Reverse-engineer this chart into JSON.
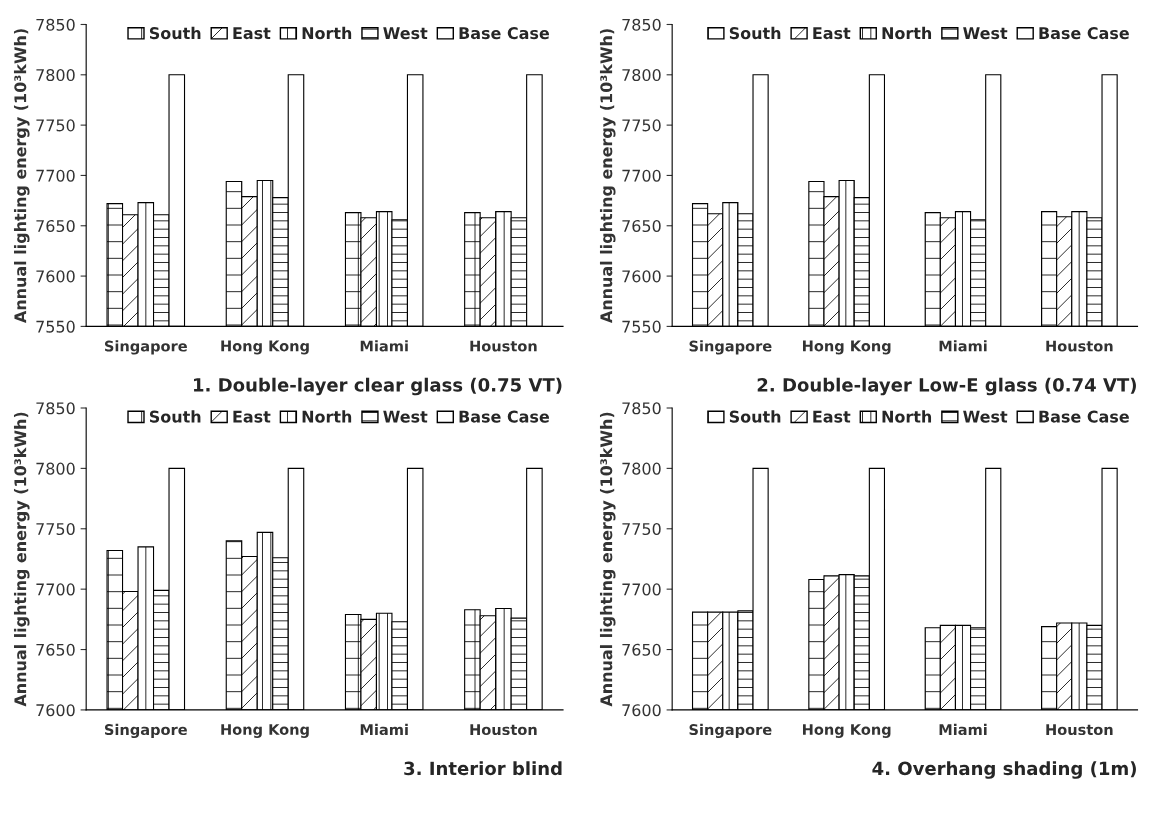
{
  "chart_data": [
    {
      "type": "bar",
      "title": "1. Double-layer clear glass (0.75 VT)",
      "ylabel": "Annual lighting energy (10³kWh)",
      "categories": [
        "Singapore",
        "Hong Kong",
        "Miami",
        "Houston"
      ],
      "ylim": [
        7550,
        7850
      ],
      "yticks": [
        7550,
        7600,
        7650,
        7700,
        7750,
        7800,
        7850
      ],
      "legend": "top",
      "series": [
        {
          "name": "South",
          "color": "#000000",
          "values": [
            7672,
            7694,
            7663,
            7663
          ]
        },
        {
          "name": "East",
          "color": "#000000",
          "values": [
            7661,
            7679,
            7658,
            7658
          ]
        },
        {
          "name": "North",
          "color": "#000000",
          "values": [
            7673,
            7695,
            7664,
            7664
          ]
        },
        {
          "name": "West",
          "color": "#000000",
          "values": [
            7661,
            7678,
            7656,
            7658
          ]
        },
        {
          "name": "Base Case",
          "color": "#ffffff",
          "values": [
            7800,
            7800,
            7800,
            7800
          ]
        }
      ]
    },
    {
      "type": "bar",
      "title": "2. Double-layer Low-E glass (0.74 VT)",
      "ylabel": "Annual lighting energy (10³kWh)",
      "categories": [
        "Singapore",
        "Hong Kong",
        "Miami",
        "Houston"
      ],
      "ylim": [
        7550,
        7850
      ],
      "yticks": [
        7550,
        7600,
        7650,
        7700,
        7750,
        7800,
        7850
      ],
      "legend": "top",
      "series": [
        {
          "name": "South",
          "color": "#000000",
          "values": [
            7672,
            7694,
            7663,
            7664
          ]
        },
        {
          "name": "East",
          "color": "#000000",
          "values": [
            7662,
            7679,
            7658,
            7659
          ]
        },
        {
          "name": "North",
          "color": "#000000",
          "values": [
            7673,
            7695,
            7664,
            7664
          ]
        },
        {
          "name": "West",
          "color": "#000000",
          "values": [
            7662,
            7678,
            7656,
            7658
          ]
        },
        {
          "name": "Base Case",
          "color": "#ffffff",
          "values": [
            7800,
            7800,
            7800,
            7800
          ]
        }
      ]
    },
    {
      "type": "bar",
      "title": "3. Interior blind",
      "ylabel": "Annual lighting energy (10³kWh)",
      "categories": [
        "Singapore",
        "Hong Kong",
        "Miami",
        "Houston"
      ],
      "ylim": [
        7600,
        7850
      ],
      "yticks": [
        7600,
        7650,
        7700,
        7750,
        7800,
        7850
      ],
      "legend": "top",
      "series": [
        {
          "name": "South",
          "color": "#000000",
          "values": [
            7732,
            7740,
            7679,
            7683
          ]
        },
        {
          "name": "East",
          "color": "#000000",
          "values": [
            7698,
            7727,
            7675,
            7678
          ]
        },
        {
          "name": "North",
          "color": "#000000",
          "values": [
            7735,
            7747,
            7680,
            7684
          ]
        },
        {
          "name": "West",
          "color": "#000000",
          "values": [
            7699,
            7726,
            7673,
            7676
          ]
        },
        {
          "name": "Base Case",
          "color": "#ffffff",
          "values": [
            7800,
            7800,
            7800,
            7800
          ]
        }
      ]
    },
    {
      "type": "bar",
      "title": "4. Overhang shading (1m)",
      "ylabel": "Annual lighting energy (10³kWh)",
      "categories": [
        "Singapore",
        "Hong Kong",
        "Miami",
        "Houston"
      ],
      "ylim": [
        7600,
        7850
      ],
      "yticks": [
        7600,
        7650,
        7700,
        7750,
        7800,
        7850
      ],
      "legend": "top",
      "series": [
        {
          "name": "South",
          "color": "#000000",
          "values": [
            7681,
            7708,
            7668,
            7669
          ]
        },
        {
          "name": "East",
          "color": "#000000",
          "values": [
            7681,
            7711,
            7670,
            7672
          ]
        },
        {
          "name": "North",
          "color": "#000000",
          "values": [
            7681,
            7712,
            7670,
            7672
          ]
        },
        {
          "name": "West",
          "color": "#000000",
          "values": [
            7682,
            7711,
            7668,
            7670
          ]
        },
        {
          "name": "Base Case",
          "color": "#ffffff",
          "values": [
            7800,
            7800,
            7800,
            7800
          ]
        }
      ]
    }
  ]
}
